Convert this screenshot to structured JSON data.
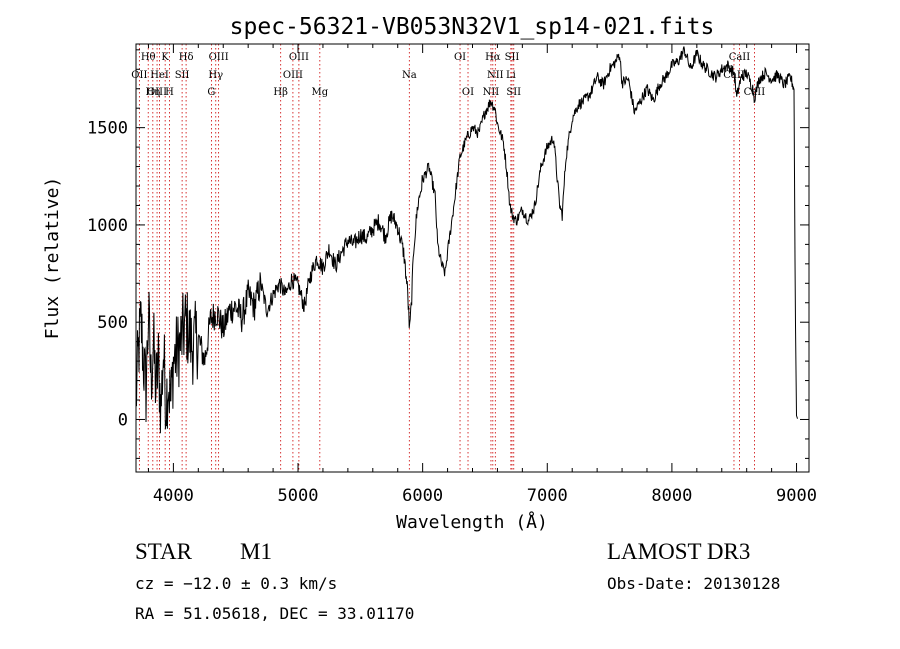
{
  "chart_data": {
    "type": "line",
    "title": "spec-56321-VB053N32V1_sp14-021.fits",
    "xlabel": "Wavelength (Å)",
    "ylabel": "Flux (relative)",
    "xlim": [
      3700,
      9100
    ],
    "ylim": [
      -270,
      1930
    ],
    "xticks": [
      4000,
      5000,
      6000,
      7000,
      8000,
      9000
    ],
    "yticks": [
      0,
      500,
      1000,
      1500
    ],
    "xtick_labels": [
      "4000",
      "5000",
      "6000",
      "7000",
      "8000",
      "9000"
    ],
    "ytick_labels": [
      "0",
      "500",
      "1000",
      "1500"
    ],
    "grid": false,
    "line_color": "#000000",
    "marker_color": "#cc0000",
    "spectrum": {
      "x": [
        3700,
        3720,
        3740,
        3760,
        3780,
        3800,
        3820,
        3840,
        3860,
        3880,
        3900,
        3920,
        3940,
        3960,
        3980,
        4000,
        4050,
        4100,
        4150,
        4200,
        4250,
        4300,
        4350,
        4400,
        4450,
        4500,
        4550,
        4600,
        4650,
        4700,
        4750,
        4800,
        4850,
        4900,
        4950,
        5000,
        5050,
        5100,
        5150,
        5200,
        5250,
        5300,
        5350,
        5400,
        5450,
        5500,
        5550,
        5600,
        5650,
        5700,
        5750,
        5800,
        5850,
        5880,
        5895,
        5910,
        5930,
        5960,
        6000,
        6050,
        6100,
        6120,
        6150,
        6180,
        6200,
        6250,
        6300,
        6350,
        6400,
        6450,
        6500,
        6550,
        6560,
        6580,
        6600,
        6650,
        6680,
        6700,
        6720,
        6750,
        6800,
        6850,
        6900,
        6950,
        7000,
        7050,
        7100,
        7120,
        7150,
        7200,
        7250,
        7300,
        7350,
        7400,
        7450,
        7500,
        7550,
        7580,
        7600,
        7650,
        7700,
        7750,
        7800,
        7850,
        7900,
        7950,
        8000,
        8050,
        8100,
        8150,
        8200,
        8250,
        8300,
        8350,
        8400,
        8450,
        8500,
        8520,
        8540,
        8560,
        8600,
        8650,
        8660,
        8700,
        8750,
        8800,
        8850,
        8900,
        8950,
        8980,
        8990,
        9000,
        9010
      ],
      "y": [
        100,
        350,
        500,
        300,
        150,
        550,
        200,
        400,
        150,
        300,
        50,
        350,
        100,
        200,
        80,
        300,
        380,
        500,
        380,
        420,
        300,
        520,
        550,
        460,
        560,
        580,
        520,
        640,
        580,
        700,
        560,
        640,
        700,
        640,
        720,
        690,
        580,
        740,
        830,
        780,
        880,
        790,
        860,
        920,
        900,
        950,
        930,
        980,
        1020,
        940,
        1050,
        990,
        850,
        650,
        450,
        600,
        900,
        1100,
        1230,
        1300,
        1150,
        900,
        800,
        750,
        860,
        1100,
        1350,
        1440,
        1500,
        1470,
        1580,
        1640,
        1620,
        1600,
        1520,
        1420,
        1250,
        1100,
        1050,
        1020,
        1080,
        1020,
        1100,
        1300,
        1400,
        1450,
        1100,
        1050,
        1350,
        1550,
        1620,
        1640,
        1680,
        1760,
        1720,
        1800,
        1840,
        1880,
        1730,
        1750,
        1580,
        1640,
        1700,
        1640,
        1720,
        1760,
        1820,
        1840,
        1900,
        1800,
        1880,
        1820,
        1790,
        1760,
        1800,
        1820,
        1780,
        1650,
        1720,
        1760,
        1780,
        1700,
        1650,
        1750,
        1780,
        1750,
        1770,
        1720,
        1760,
        1700,
        600,
        20,
        0
      ]
    },
    "lines": [
      {
        "label": "Hθ",
        "x": 3798,
        "row": 0
      },
      {
        "label": "K",
        "x": 3934,
        "row": 0
      },
      {
        "label": "Hδ",
        "x": 4102,
        "row": 0
      },
      {
        "label": "OIII",
        "x": 4363,
        "row": 0
      },
      {
        "label": "OIII",
        "x": 5007,
        "row": 0
      },
      {
        "label": "OI",
        "x": 6300,
        "row": 0
      },
      {
        "label": "Hα",
        "x": 6563,
        "row": 0
      },
      {
        "label": "SII",
        "x": 6717,
        "row": 0
      },
      {
        "label": "CaII",
        "x": 8542,
        "row": 0
      },
      {
        "label": "OII",
        "x": 3727,
        "row": 1
      },
      {
        "label": "HeI",
        "x": 3889,
        "row": 1
      },
      {
        "label": "SII",
        "x": 4070,
        "row": 1
      },
      {
        "label": "Hγ",
        "x": 4340,
        "row": 1
      },
      {
        "label": "OIII",
        "x": 4959,
        "row": 1
      },
      {
        "label": "Na",
        "x": 5893,
        "row": 1
      },
      {
        "label": "NII",
        "x": 6583,
        "row": 1
      },
      {
        "label": "Li",
        "x": 6708,
        "row": 1
      },
      {
        "label": "CaII",
        "x": 8498,
        "row": 1
      },
      {
        "label": "OIII",
        "x": 3869,
        "row": 2
      },
      {
        "label": "Hη",
        "x": 3835,
        "row": 2
      },
      {
        "label": "H",
        "x": 3969,
        "row": 2
      },
      {
        "label": "G",
        "x": 4305,
        "row": 2
      },
      {
        "label": "Hβ",
        "x": 4861,
        "row": 2
      },
      {
        "label": "Mg",
        "x": 5175,
        "row": 2
      },
      {
        "label": "OI",
        "x": 6364,
        "row": 2
      },
      {
        "label": "NII",
        "x": 6548,
        "row": 2
      },
      {
        "label": "SII",
        "x": 6731,
        "row": 2
      },
      {
        "label": "CaII",
        "x": 8662,
        "row": 2
      }
    ]
  },
  "info": {
    "object_class": "STAR",
    "subclass": "M1",
    "survey": "LAMOST DR3",
    "redshift": "cz = −12.0 ± 0.3 km/s",
    "obs_date": "Obs-Date: 20130128",
    "coords": "RA =  51.05618, DEC =  33.01170"
  }
}
